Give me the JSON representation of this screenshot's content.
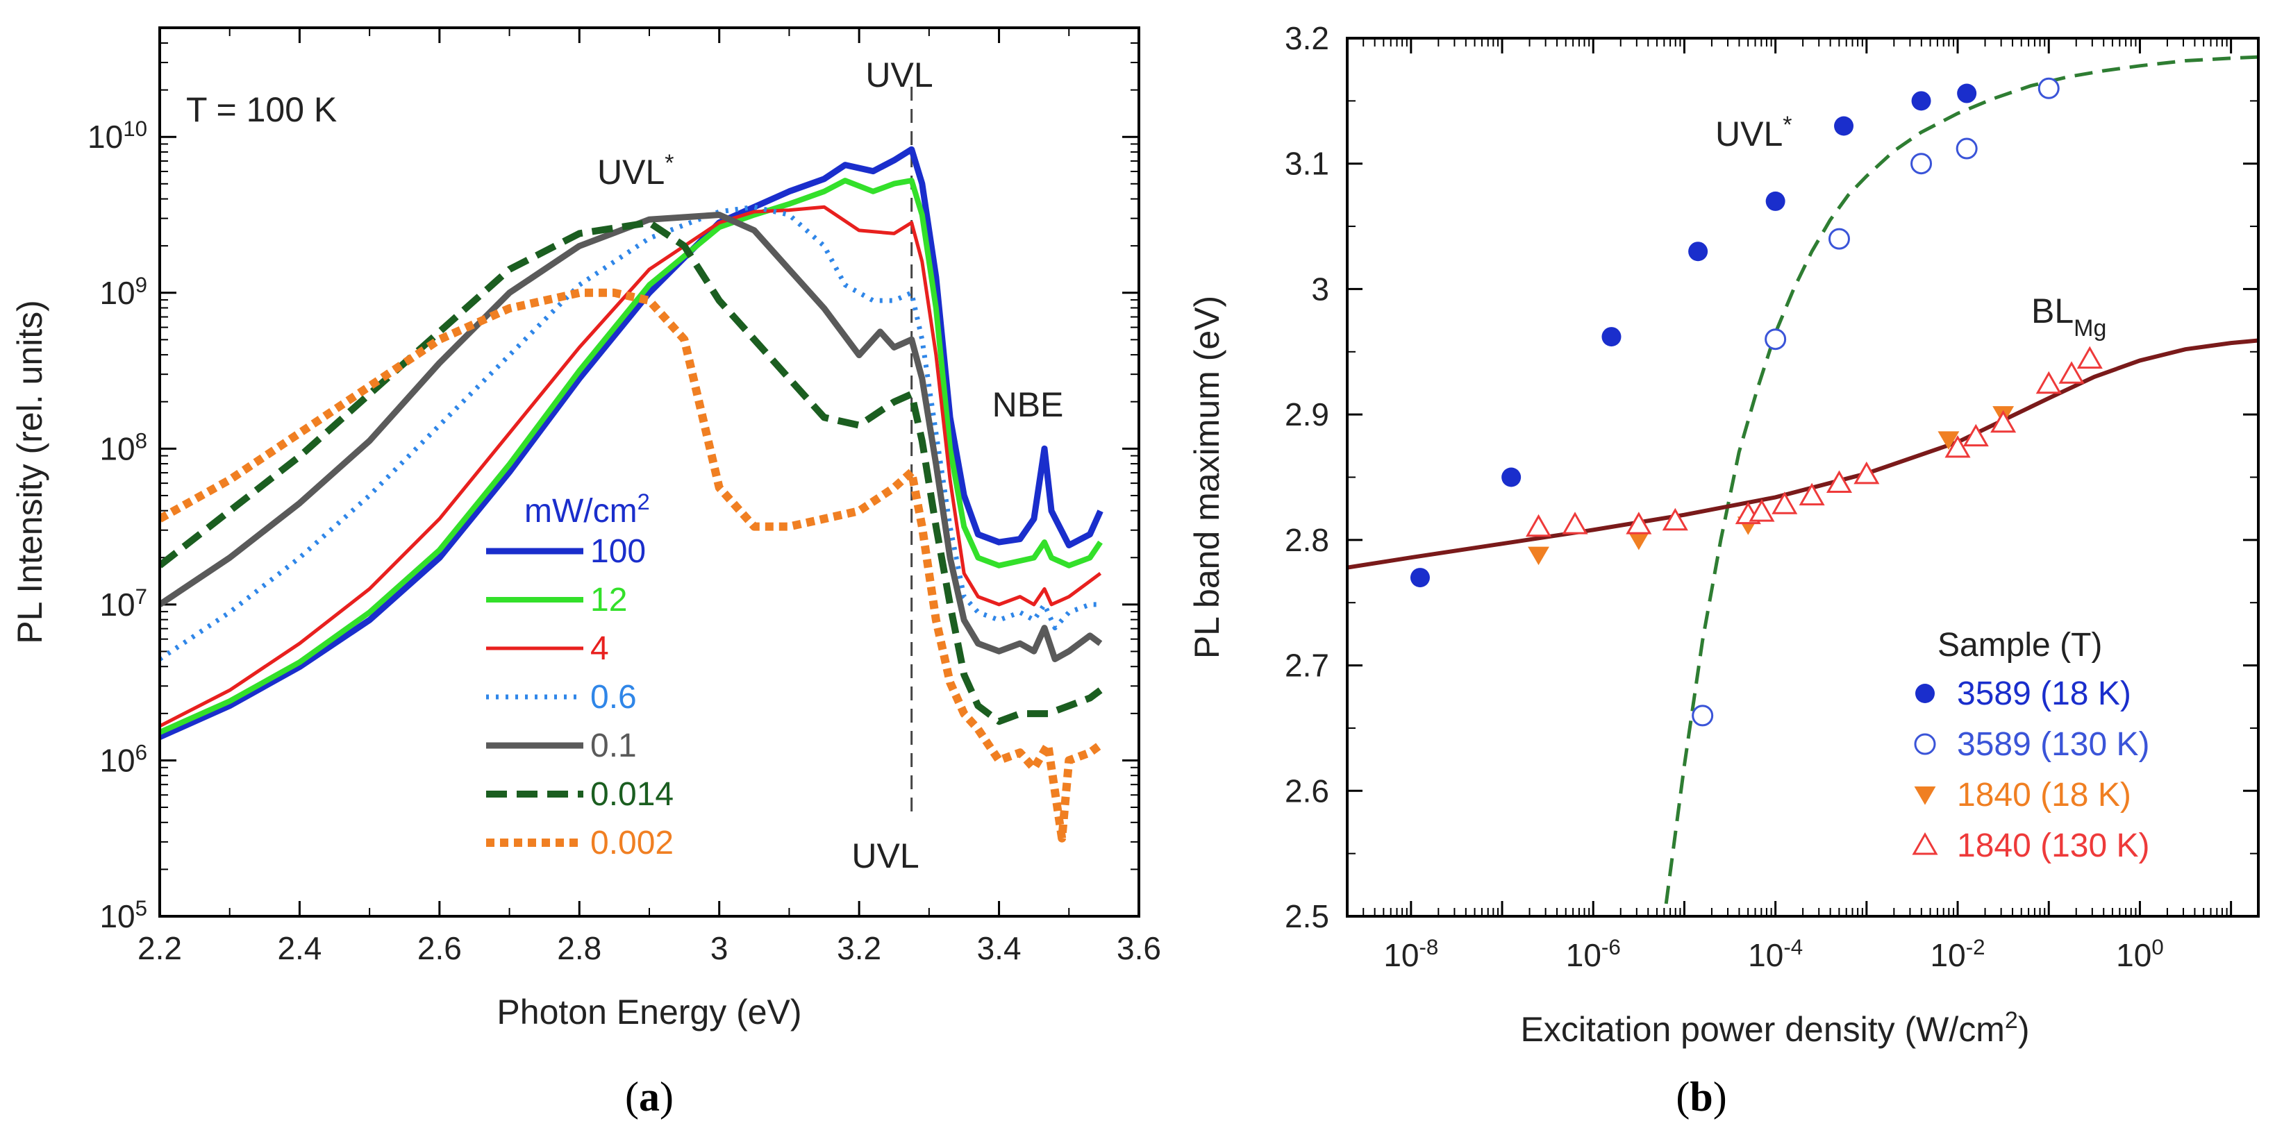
{
  "chart_data": [
    {
      "panel": "a",
      "type": "line",
      "caption": "a",
      "xlabel": "Photon Energy (eV)",
      "ylabel": "PL Intensity (rel. units)",
      "xlim": [
        2.2,
        3.6
      ],
      "ylim_log10": [
        5,
        10.7
      ],
      "xticks": [
        "2.2",
        "2.4",
        "2.6",
        "2.8",
        "3",
        "3.2",
        "3.4",
        "3.6"
      ],
      "yticks": [
        {
          "base": "10",
          "exp": "5"
        },
        {
          "base": "10",
          "exp": "6"
        },
        {
          "base": "10",
          "exp": "7"
        },
        {
          "base": "10",
          "exp": "8"
        },
        {
          "base": "10",
          "exp": "9"
        },
        {
          "base": "10",
          "exp": "10"
        }
      ],
      "annotations": {
        "temperature": "T = 100 K",
        "uvl_star": "UVL",
        "uvl_star_sup": "*",
        "uvl_top": "UVL",
        "uvl_bottom": "UVL",
        "nbe": "NBE"
      },
      "uvl_line_x": 3.275,
      "legend_title": "mW/cm",
      "legend_title_sup": "2",
      "series": [
        {
          "name": "100",
          "color": "#1a2ecc",
          "dash": "",
          "width": 9,
          "x": [
            2.2,
            2.3,
            2.4,
            2.5,
            2.6,
            2.7,
            2.8,
            2.9,
            3.0,
            3.05,
            3.1,
            3.15,
            3.18,
            3.22,
            3.25,
            3.275,
            3.29,
            3.31,
            3.33,
            3.35,
            3.37,
            3.4,
            3.43,
            3.45,
            3.465,
            3.475,
            3.5,
            3.53,
            3.545
          ],
          "y": [
            6.15,
            6.35,
            6.6,
            6.9,
            7.3,
            7.85,
            8.45,
            9.0,
            9.45,
            9.55,
            9.65,
            9.73,
            9.82,
            9.78,
            9.85,
            9.92,
            9.7,
            9.1,
            8.2,
            7.7,
            7.45,
            7.4,
            7.42,
            7.55,
            8.0,
            7.6,
            7.38,
            7.45,
            7.6
          ]
        },
        {
          "name": "12",
          "color": "#33e02a",
          "dash": "",
          "width": 8,
          "x": [
            2.2,
            2.3,
            2.4,
            2.5,
            2.6,
            2.7,
            2.8,
            2.9,
            3.0,
            3.05,
            3.1,
            3.15,
            3.18,
            3.22,
            3.25,
            3.275,
            3.29,
            3.31,
            3.33,
            3.35,
            3.37,
            3.4,
            3.43,
            3.45,
            3.465,
            3.475,
            3.5,
            3.53,
            3.545
          ],
          "y": [
            6.18,
            6.38,
            6.63,
            6.95,
            7.35,
            7.9,
            8.5,
            9.05,
            9.42,
            9.5,
            9.57,
            9.65,
            9.72,
            9.65,
            9.7,
            9.72,
            9.5,
            8.9,
            8.0,
            7.5,
            7.3,
            7.25,
            7.28,
            7.3,
            7.4,
            7.3,
            7.25,
            7.3,
            7.4
          ]
        },
        {
          "name": "4",
          "color": "#e8201e",
          "dash": "",
          "width": 5,
          "x": [
            2.2,
            2.3,
            2.4,
            2.5,
            2.6,
            2.7,
            2.8,
            2.9,
            3.0,
            3.05,
            3.1,
            3.15,
            3.2,
            3.25,
            3.275,
            3.29,
            3.31,
            3.33,
            3.35,
            3.37,
            3.4,
            3.43,
            3.45,
            3.465,
            3.475,
            3.5,
            3.53,
            3.545
          ],
          "y": [
            6.22,
            6.45,
            6.75,
            7.1,
            7.55,
            8.1,
            8.65,
            9.15,
            9.45,
            9.52,
            9.53,
            9.55,
            9.4,
            9.38,
            9.45,
            9.2,
            8.6,
            7.8,
            7.2,
            7.05,
            7.0,
            7.05,
            7.0,
            7.1,
            7.0,
            7.05,
            7.15,
            7.2
          ]
        },
        {
          "name": "0.6",
          "color": "#2f86e8",
          "dash": "4,10",
          "width": 7,
          "x": [
            2.2,
            2.3,
            2.4,
            2.5,
            2.6,
            2.7,
            2.8,
            2.9,
            3.0,
            3.05,
            3.1,
            3.15,
            3.18,
            3.22,
            3.25,
            3.275,
            3.29,
            3.31,
            3.33,
            3.35,
            3.37,
            3.4,
            3.43,
            3.45,
            3.465,
            3.48,
            3.5,
            3.53,
            3.545
          ],
          "y": [
            6.65,
            6.95,
            7.3,
            7.7,
            8.15,
            8.6,
            9.05,
            9.35,
            9.52,
            9.55,
            9.5,
            9.3,
            9.05,
            8.95,
            8.95,
            9.0,
            8.7,
            8.1,
            7.5,
            7.05,
            6.95,
            6.9,
            6.95,
            6.9,
            7.0,
            6.85,
            6.95,
            7.0,
            7.0
          ]
        },
        {
          "name": "0.1",
          "color": "#5a5a5a",
          "dash": "",
          "width": 9,
          "x": [
            2.2,
            2.3,
            2.4,
            2.5,
            2.6,
            2.7,
            2.8,
            2.9,
            3.0,
            3.05,
            3.1,
            3.15,
            3.2,
            3.23,
            3.25,
            3.275,
            3.29,
            3.31,
            3.33,
            3.35,
            3.37,
            3.4,
            3.43,
            3.45,
            3.465,
            3.48,
            3.5,
            3.53,
            3.545
          ],
          "y": [
            7.0,
            7.3,
            7.65,
            8.05,
            8.55,
            9.0,
            9.3,
            9.47,
            9.5,
            9.4,
            9.15,
            8.9,
            8.6,
            8.75,
            8.65,
            8.7,
            8.45,
            7.9,
            7.3,
            6.9,
            6.75,
            6.7,
            6.75,
            6.7,
            6.85,
            6.65,
            6.7,
            6.8,
            6.75
          ]
        },
        {
          "name": "0.014",
          "color": "#1b5e20",
          "dash": "30,14",
          "width": 10,
          "x": [
            2.2,
            2.3,
            2.4,
            2.5,
            2.6,
            2.7,
            2.8,
            2.9,
            2.95,
            3.0,
            3.05,
            3.1,
            3.15,
            3.2,
            3.25,
            3.275,
            3.29,
            3.31,
            3.33,
            3.35,
            3.37,
            3.4,
            3.43,
            3.45,
            3.47,
            3.5,
            3.53,
            3.545
          ],
          "y": [
            7.25,
            7.6,
            7.95,
            8.35,
            8.75,
            9.15,
            9.38,
            9.45,
            9.3,
            8.95,
            8.7,
            8.45,
            8.2,
            8.15,
            8.3,
            8.35,
            8.05,
            7.5,
            7.0,
            6.55,
            6.35,
            6.25,
            6.3,
            6.3,
            6.3,
            6.35,
            6.4,
            6.45
          ]
        },
        {
          "name": "0.002",
          "color": "#f07f22",
          "dash": "12,8",
          "width": 12,
          "x": [
            2.2,
            2.3,
            2.4,
            2.5,
            2.6,
            2.7,
            2.8,
            2.85,
            2.9,
            2.95,
            3.0,
            3.05,
            3.1,
            3.15,
            3.2,
            3.25,
            3.275,
            3.29,
            3.31,
            3.33,
            3.35,
            3.37,
            3.4,
            3.43,
            3.45,
            3.47,
            3.49,
            3.5,
            3.53,
            3.545
          ],
          "y": [
            7.55,
            7.8,
            8.1,
            8.4,
            8.7,
            8.9,
            9.0,
            9.0,
            8.95,
            8.7,
            7.75,
            7.5,
            7.5,
            7.55,
            7.6,
            7.75,
            7.85,
            7.5,
            6.9,
            6.5,
            6.3,
            6.2,
            6.0,
            6.05,
            5.95,
            6.1,
            5.5,
            6.0,
            6.05,
            6.1
          ]
        }
      ]
    },
    {
      "panel": "b",
      "type": "scatter",
      "caption": "b",
      "xlabel": "Excitation power density (W/cm",
      "xlabel_sup": "2",
      "xlabel_end": ")",
      "ylabel": "PL band maximum (eV)",
      "xlim_log10": [
        -8.7,
        1.3
      ],
      "ylim": [
        2.5,
        3.2
      ],
      "xticks": [
        {
          "base": "10",
          "exp": "-8",
          "log": -8
        },
        {
          "base": "10",
          "exp": "-6",
          "log": -6
        },
        {
          "base": "10",
          "exp": "-4",
          "log": -4
        },
        {
          "base": "10",
          "exp": "-2",
          "log": -2
        },
        {
          "base": "10",
          "exp": "0",
          "log": 0
        }
      ],
      "yticks": [
        "2.5",
        "2.6",
        "2.7",
        "2.8",
        "2.9",
        "3",
        "3.1",
        "3.2"
      ],
      "annotations": {
        "uvl_star": "UVL",
        "uvl_star_sup": "*",
        "bl": "BL",
        "bl_sub": "Mg"
      },
      "legend_title": "Sample (T)",
      "series": [
        {
          "name": "3589 (18 K)",
          "color": "#1a2ecc",
          "marker": "filled-circle",
          "x_log10": [
            -7.9,
            -6.9,
            -5.8,
            -4.85,
            -4.0,
            -3.25,
            -2.4,
            -1.9
          ],
          "y": [
            2.77,
            2.85,
            2.962,
            3.03,
            3.07,
            3.13,
            3.15,
            3.156
          ]
        },
        {
          "name": "3589 (130 K)",
          "color": "#3a54d8",
          "marker": "open-circle",
          "x_log10": [
            -4.8,
            -4.0,
            -3.3,
            -2.4,
            -1.9,
            -1.0
          ],
          "y": [
            2.66,
            2.96,
            3.04,
            3.1,
            3.112,
            3.16
          ]
        },
        {
          "name": "1840 (18 K)",
          "color": "#f07f22",
          "marker": "filled-triangle-down",
          "x_log10": [
            -6.6,
            -5.5,
            -4.3,
            -2.1,
            -1.5
          ],
          "y": [
            2.788,
            2.8,
            2.812,
            2.88,
            2.9
          ]
        },
        {
          "name": "1840 (130 K)",
          "color": "#ee3a3a",
          "marker": "open-triangle-up",
          "x_log10": [
            -6.6,
            -6.2,
            -5.5,
            -5.1,
            -4.3,
            -4.15,
            -3.9,
            -3.6,
            -3.3,
            -3.0,
            -2.0,
            -1.8,
            -1.5,
            -1.0,
            -0.75,
            -0.55
          ],
          "y": [
            2.81,
            2.812,
            2.812,
            2.815,
            2.82,
            2.822,
            2.828,
            2.835,
            2.845,
            2.852,
            2.873,
            2.882,
            2.893,
            2.924,
            2.932,
            2.944
          ]
        }
      ],
      "fits": [
        {
          "name": "uvl-star-fit",
          "color": "#2e7d32",
          "dash": "26,14",
          "x_log10": [
            -5.2,
            -5.0,
            -4.8,
            -4.6,
            -4.4,
            -4.2,
            -4.0,
            -3.8,
            -3.6,
            -3.4,
            -3.2,
            -3.0,
            -2.7,
            -2.4,
            -2.0,
            -1.6,
            -1.2,
            -0.8,
            -0.4,
            0.0,
            0.5,
            1.0,
            1.3
          ],
          "y": [
            2.51,
            2.62,
            2.72,
            2.8,
            2.87,
            2.92,
            2.965,
            3.0,
            3.03,
            3.055,
            3.075,
            3.09,
            3.11,
            3.125,
            3.14,
            3.152,
            3.162,
            3.169,
            3.174,
            3.178,
            3.182,
            3.184,
            3.185
          ]
        },
        {
          "name": "bl-mg-fit",
          "color": "#7a1a1a",
          "dash": "",
          "x_log10": [
            -8.7,
            -8.0,
            -7.0,
            -6.0,
            -5.0,
            -4.0,
            -3.0,
            -2.0,
            -1.0,
            -0.5,
            0.0,
            0.5,
            1.0,
            1.3
          ],
          "y": [
            2.778,
            2.786,
            2.797,
            2.808,
            2.82,
            2.834,
            2.853,
            2.878,
            2.913,
            2.93,
            2.943,
            2.952,
            2.957,
            2.959
          ]
        }
      ]
    }
  ]
}
